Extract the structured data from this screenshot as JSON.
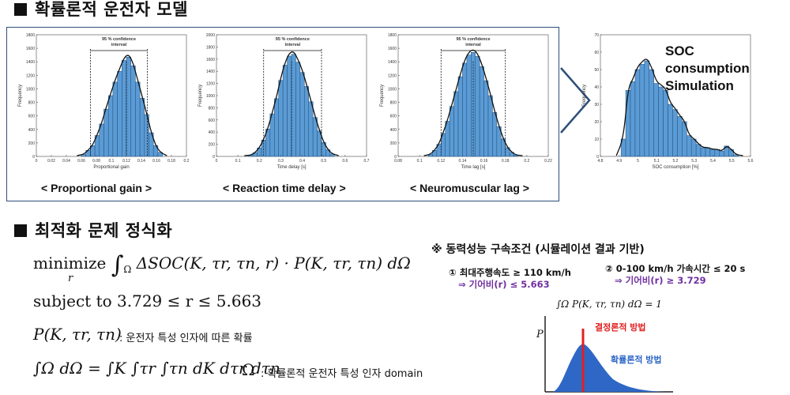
{
  "section1": {
    "title": "확률론적 운전자 모델"
  },
  "charts": {
    "panel1": {
      "caption": "< Proportional gain >",
      "xlabel": "Proportional gain",
      "ci": "95 % confidence interval"
    },
    "panel2": {
      "caption": "< Reaction time delay >",
      "xlabel": "Time delay [s]",
      "ci": "95 % confidence interval"
    },
    "panel3": {
      "caption": "< Neuromuscular lag >",
      "xlabel": "Time lag [s]",
      "ci": "95 % confidence interval"
    },
    "panel4": {
      "xlabel": "SOC consumption [%]"
    },
    "ylabel": "Frequency"
  },
  "soc_label": [
    "SOC",
    "consumption",
    "Simulation"
  ],
  "section2": {
    "title": "최적화 문제 정식화"
  },
  "formula": {
    "minimize": "minimize",
    "sub_r": "r",
    "objective": "ΔSOC(K, τr, τn, r) · P(K, τr, τn) dΩ",
    "subject": "subject to 3.729 ≤ r ≤ 5.663",
    "p_def": "P(K, τr, τn)",
    "p_note": ": 운전자 특성 인자에 따른 확률",
    "omega_def": "∫Ω dΩ = ∫K ∫τr ∫τn dK dτr dτn",
    "omega_sym": "Ω",
    "omega_note": ": 확률론적 운전자 특성 인자 domain"
  },
  "constraints": {
    "title": "※ 동력성능 구속조건 (시뮬레이션 결과 기반)",
    "c1": "① 최대주행속도 ≥ 110 km/h",
    "c1_result": "⇒ 기어비(r) ≤ 5.663",
    "c2": "② 0-100 km/h 가속시간 ≤ 20 s",
    "c2_result": "⇒ 기어비(r) ≥ 3.729"
  },
  "mini": {
    "integral": "∫Ω P(K, τr, τn) dΩ = 1",
    "ylabel": "P",
    "deterministic": "결정론적 방법",
    "probabilistic": "확률론적 방법"
  },
  "chart_data": [
    {
      "type": "bar",
      "xlabel": "Proportional gain",
      "ylabel": "Frequency",
      "xlim": [
        0,
        0.2
      ],
      "ylim": [
        0,
        1800
      ],
      "xticks": [
        "0",
        "0.02",
        "0.04",
        "0.06",
        "0.08",
        "0.1",
        "0.12",
        "0.14",
        "0.16",
        "0.18",
        "0.2"
      ],
      "yticks": [
        "0",
        "200",
        "400",
        "600",
        "800",
        "1000",
        "1200",
        "1400",
        "1600",
        "1800"
      ],
      "annotation": "95 % confidence interval",
      "ci": [
        0.072,
        0.148
      ],
      "mean": 0.12,
      "bins": [
        0.06,
        0.066,
        0.072,
        0.078,
        0.084,
        0.09,
        0.096,
        0.102,
        0.108,
        0.114,
        0.12,
        0.126,
        0.132,
        0.138,
        0.144,
        0.15,
        0.156,
        0.162
      ],
      "values": [
        30,
        90,
        160,
        310,
        480,
        700,
        900,
        1100,
        1260,
        1420,
        1470,
        1340,
        1100,
        860,
        620,
        350,
        160,
        60
      ]
    },
    {
      "type": "bar",
      "xlabel": "Time delay [s]",
      "ylabel": "Frequency",
      "xlim": [
        0,
        0.7
      ],
      "ylim": [
        0,
        2000
      ],
      "xticks": [
        "0",
        "0.1",
        "0.2",
        "0.3",
        "0.4",
        "0.5",
        "0.6",
        "0.7"
      ],
      "yticks": [
        "0",
        "200",
        "400",
        "600",
        "800",
        "1000",
        "1200",
        "1400",
        "1600",
        "1800",
        "2000"
      ],
      "annotation": "95 % confidence interval",
      "ci": [
        0.22,
        0.49
      ],
      "mean": 0.35,
      "bins": [
        0.15,
        0.17,
        0.19,
        0.21,
        0.23,
        0.25,
        0.27,
        0.29,
        0.31,
        0.33,
        0.35,
        0.37,
        0.39,
        0.41,
        0.43,
        0.45,
        0.47,
        0.49,
        0.51,
        0.53
      ],
      "values": [
        20,
        60,
        140,
        270,
        450,
        700,
        950,
        1250,
        1500,
        1650,
        1680,
        1550,
        1380,
        1150,
        900,
        640,
        420,
        230,
        110,
        40
      ]
    },
    {
      "type": "bar",
      "xlabel": "Time lag [s]",
      "ylabel": "Frequency",
      "xlim": [
        0.08,
        0.22
      ],
      "ylim": [
        0,
        1800
      ],
      "xticks": [
        "0.08",
        "0.1",
        "0.12",
        "0.14",
        "0.16",
        "0.18",
        "0.2",
        "0.22"
      ],
      "yticks": [
        "0",
        "200",
        "400",
        "600",
        "800",
        "1000",
        "1200",
        "1400",
        "1600",
        "1800"
      ],
      "annotation": "95 % confidence interval",
      "ci": [
        0.12,
        0.18
      ],
      "mean": 0.15,
      "bins": [
        0.108,
        0.112,
        0.116,
        0.12,
        0.124,
        0.128,
        0.132,
        0.136,
        0.14,
        0.144,
        0.148,
        0.152,
        0.156,
        0.16,
        0.164,
        0.168,
        0.172,
        0.176,
        0.18,
        0.184,
        0.188
      ],
      "values": [
        30,
        90,
        180,
        340,
        520,
        740,
        960,
        1180,
        1380,
        1500,
        1540,
        1480,
        1330,
        1120,
        900,
        650,
        440,
        260,
        130,
        60,
        20
      ]
    },
    {
      "type": "bar",
      "xlabel": "SOC consumption [%]",
      "ylabel": "Frequency",
      "xlim": [
        4.8,
        5.6
      ],
      "ylim": [
        0,
        70
      ],
      "xticks": [
        "4.8",
        "4.9",
        "5",
        "5.1",
        "5.2",
        "5.3",
        "5.4",
        "5.5",
        "5.6"
      ],
      "yticks": [
        "0",
        "10",
        "20",
        "30",
        "40",
        "50",
        "60",
        "70"
      ],
      "bins": [
        4.91,
        4.935,
        4.96,
        4.985,
        5.01,
        5.035,
        5.06,
        5.085,
        5.11,
        5.135,
        5.16,
        5.185,
        5.21,
        5.235,
        5.26,
        5.285,
        5.31,
        5.335,
        5.36,
        5.385,
        5.41,
        5.435,
        5.46,
        5.485,
        5.51
      ],
      "values": [
        10,
        38,
        43,
        50,
        53,
        55,
        50,
        42,
        40,
        38,
        30,
        27,
        23,
        20,
        12,
        10,
        7,
        5,
        5,
        4,
        4,
        3,
        6,
        4,
        1
      ]
    }
  ],
  "colors": {
    "bar": "#5b9bd5",
    "bar_edge": "#1f4e79",
    "arrow": "#2e4f7a",
    "red": "#e02020",
    "blue_fill": "#2e67c6",
    "purple": "#7030a0"
  }
}
